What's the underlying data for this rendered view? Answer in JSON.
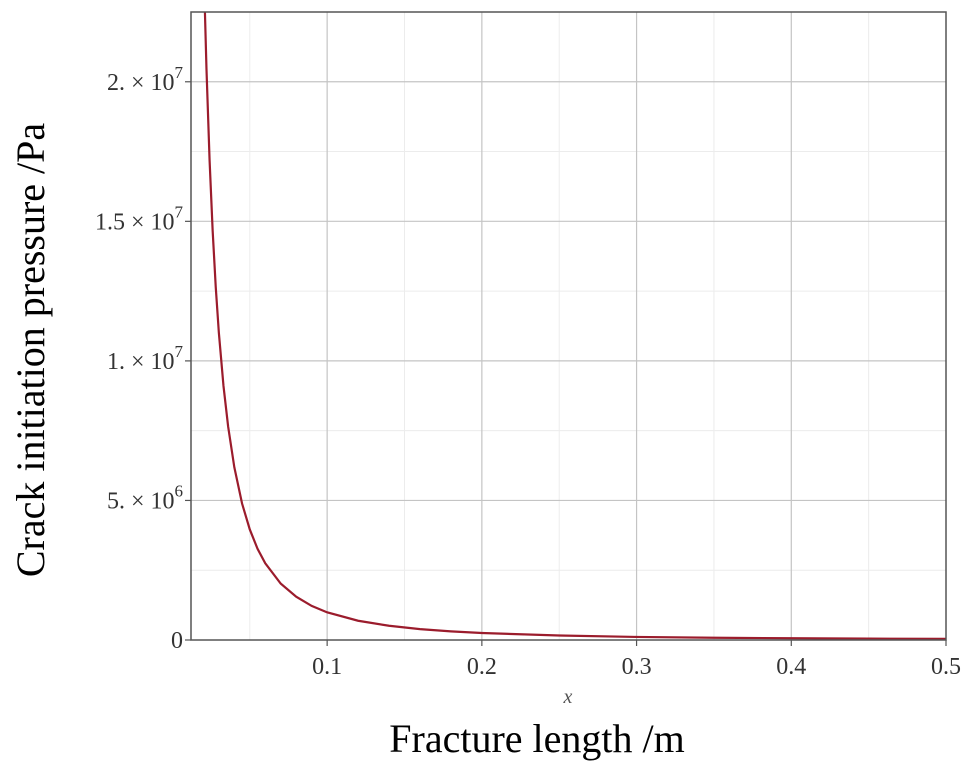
{
  "chart_data": {
    "type": "line",
    "xlabel": "Fracture length /m",
    "ylabel": "Crack initiation pressure /Pa",
    "x_var_label": "x",
    "xlim": [
      0.012,
      0.5
    ],
    "ylim": [
      0,
      22500000
    ],
    "grid": true,
    "legend": "none",
    "x_ticks": [
      {
        "value": 0.1,
        "label": "0.1"
      },
      {
        "value": 0.2,
        "label": "0.2"
      },
      {
        "value": 0.3,
        "label": "0.3"
      },
      {
        "value": 0.4,
        "label": "0.4"
      },
      {
        "value": 0.5,
        "label": "0.5"
      }
    ],
    "y_ticks": [
      {
        "value": 0,
        "mantissa": "0",
        "exponent": ""
      },
      {
        "value": 5000000,
        "mantissa": "5. × 10",
        "exponent": "6"
      },
      {
        "value": 10000000,
        "mantissa": "1. × 10",
        "exponent": "7"
      },
      {
        "value": 15000000,
        "mantissa": "1.5 × 10",
        "exponent": "7"
      },
      {
        "value": 20000000,
        "mantissa": "2. × 10",
        "exponent": "7"
      }
    ],
    "series": [
      {
        "color": "#9b1c2c",
        "x": [
          0.021,
          0.022,
          0.024,
          0.026,
          0.028,
          0.03,
          0.033,
          0.036,
          0.04,
          0.045,
          0.05,
          0.055,
          0.06,
          0.07,
          0.08,
          0.09,
          0.1,
          0.12,
          0.14,
          0.16,
          0.18,
          0.2,
          0.25,
          0.3,
          0.35,
          0.4,
          0.45,
          0.5
        ],
        "y": [
          22500000,
          20470000,
          17200000,
          14660000,
          12640000,
          11010000,
          9100000,
          7650000,
          6190000,
          4890000,
          3960000,
          3270000,
          2750000,
          2020000,
          1550000,
          1220000,
          990000,
          690000,
          510000,
          390000,
          310000,
          250000,
          160000,
          110000,
          80000,
          62000,
          49000,
          40000
        ]
      }
    ]
  }
}
